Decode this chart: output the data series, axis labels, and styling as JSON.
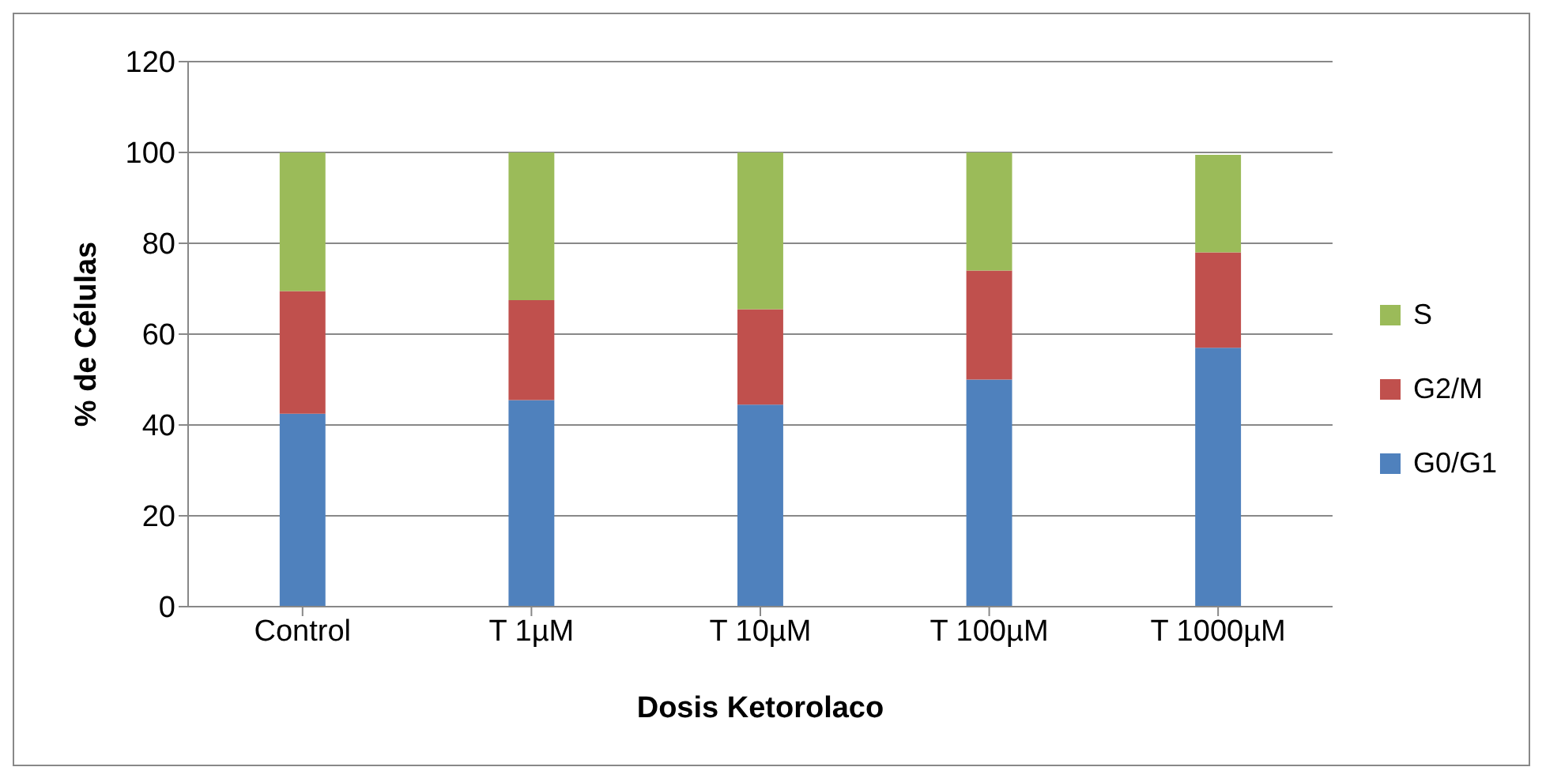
{
  "chart_data": {
    "type": "bar",
    "stacked": true,
    "xlabel": "Dosis Ketorolaco",
    "ylabel": "% de Células",
    "categories": [
      "Control",
      "T 1µM",
      "T 10µM",
      "T 100µM",
      "T 1000µM"
    ],
    "series": [
      {
        "name": "G0/G1",
        "color": "#4f81bd",
        "values": [
          42.5,
          45.5,
          44.5,
          50,
          57
        ]
      },
      {
        "name": "G2/M",
        "color": "#c0504d",
        "values": [
          27,
          22,
          21,
          24,
          21
        ]
      },
      {
        "name": "S",
        "color": "#9bbb59",
        "values": [
          30.5,
          32.5,
          34.5,
          26,
          21.5
        ]
      }
    ],
    "ylim": [
      0,
      120
    ],
    "yticks": [
      0,
      20,
      40,
      60,
      80,
      100,
      120
    ],
    "grid": "y",
    "legend": "right"
  }
}
